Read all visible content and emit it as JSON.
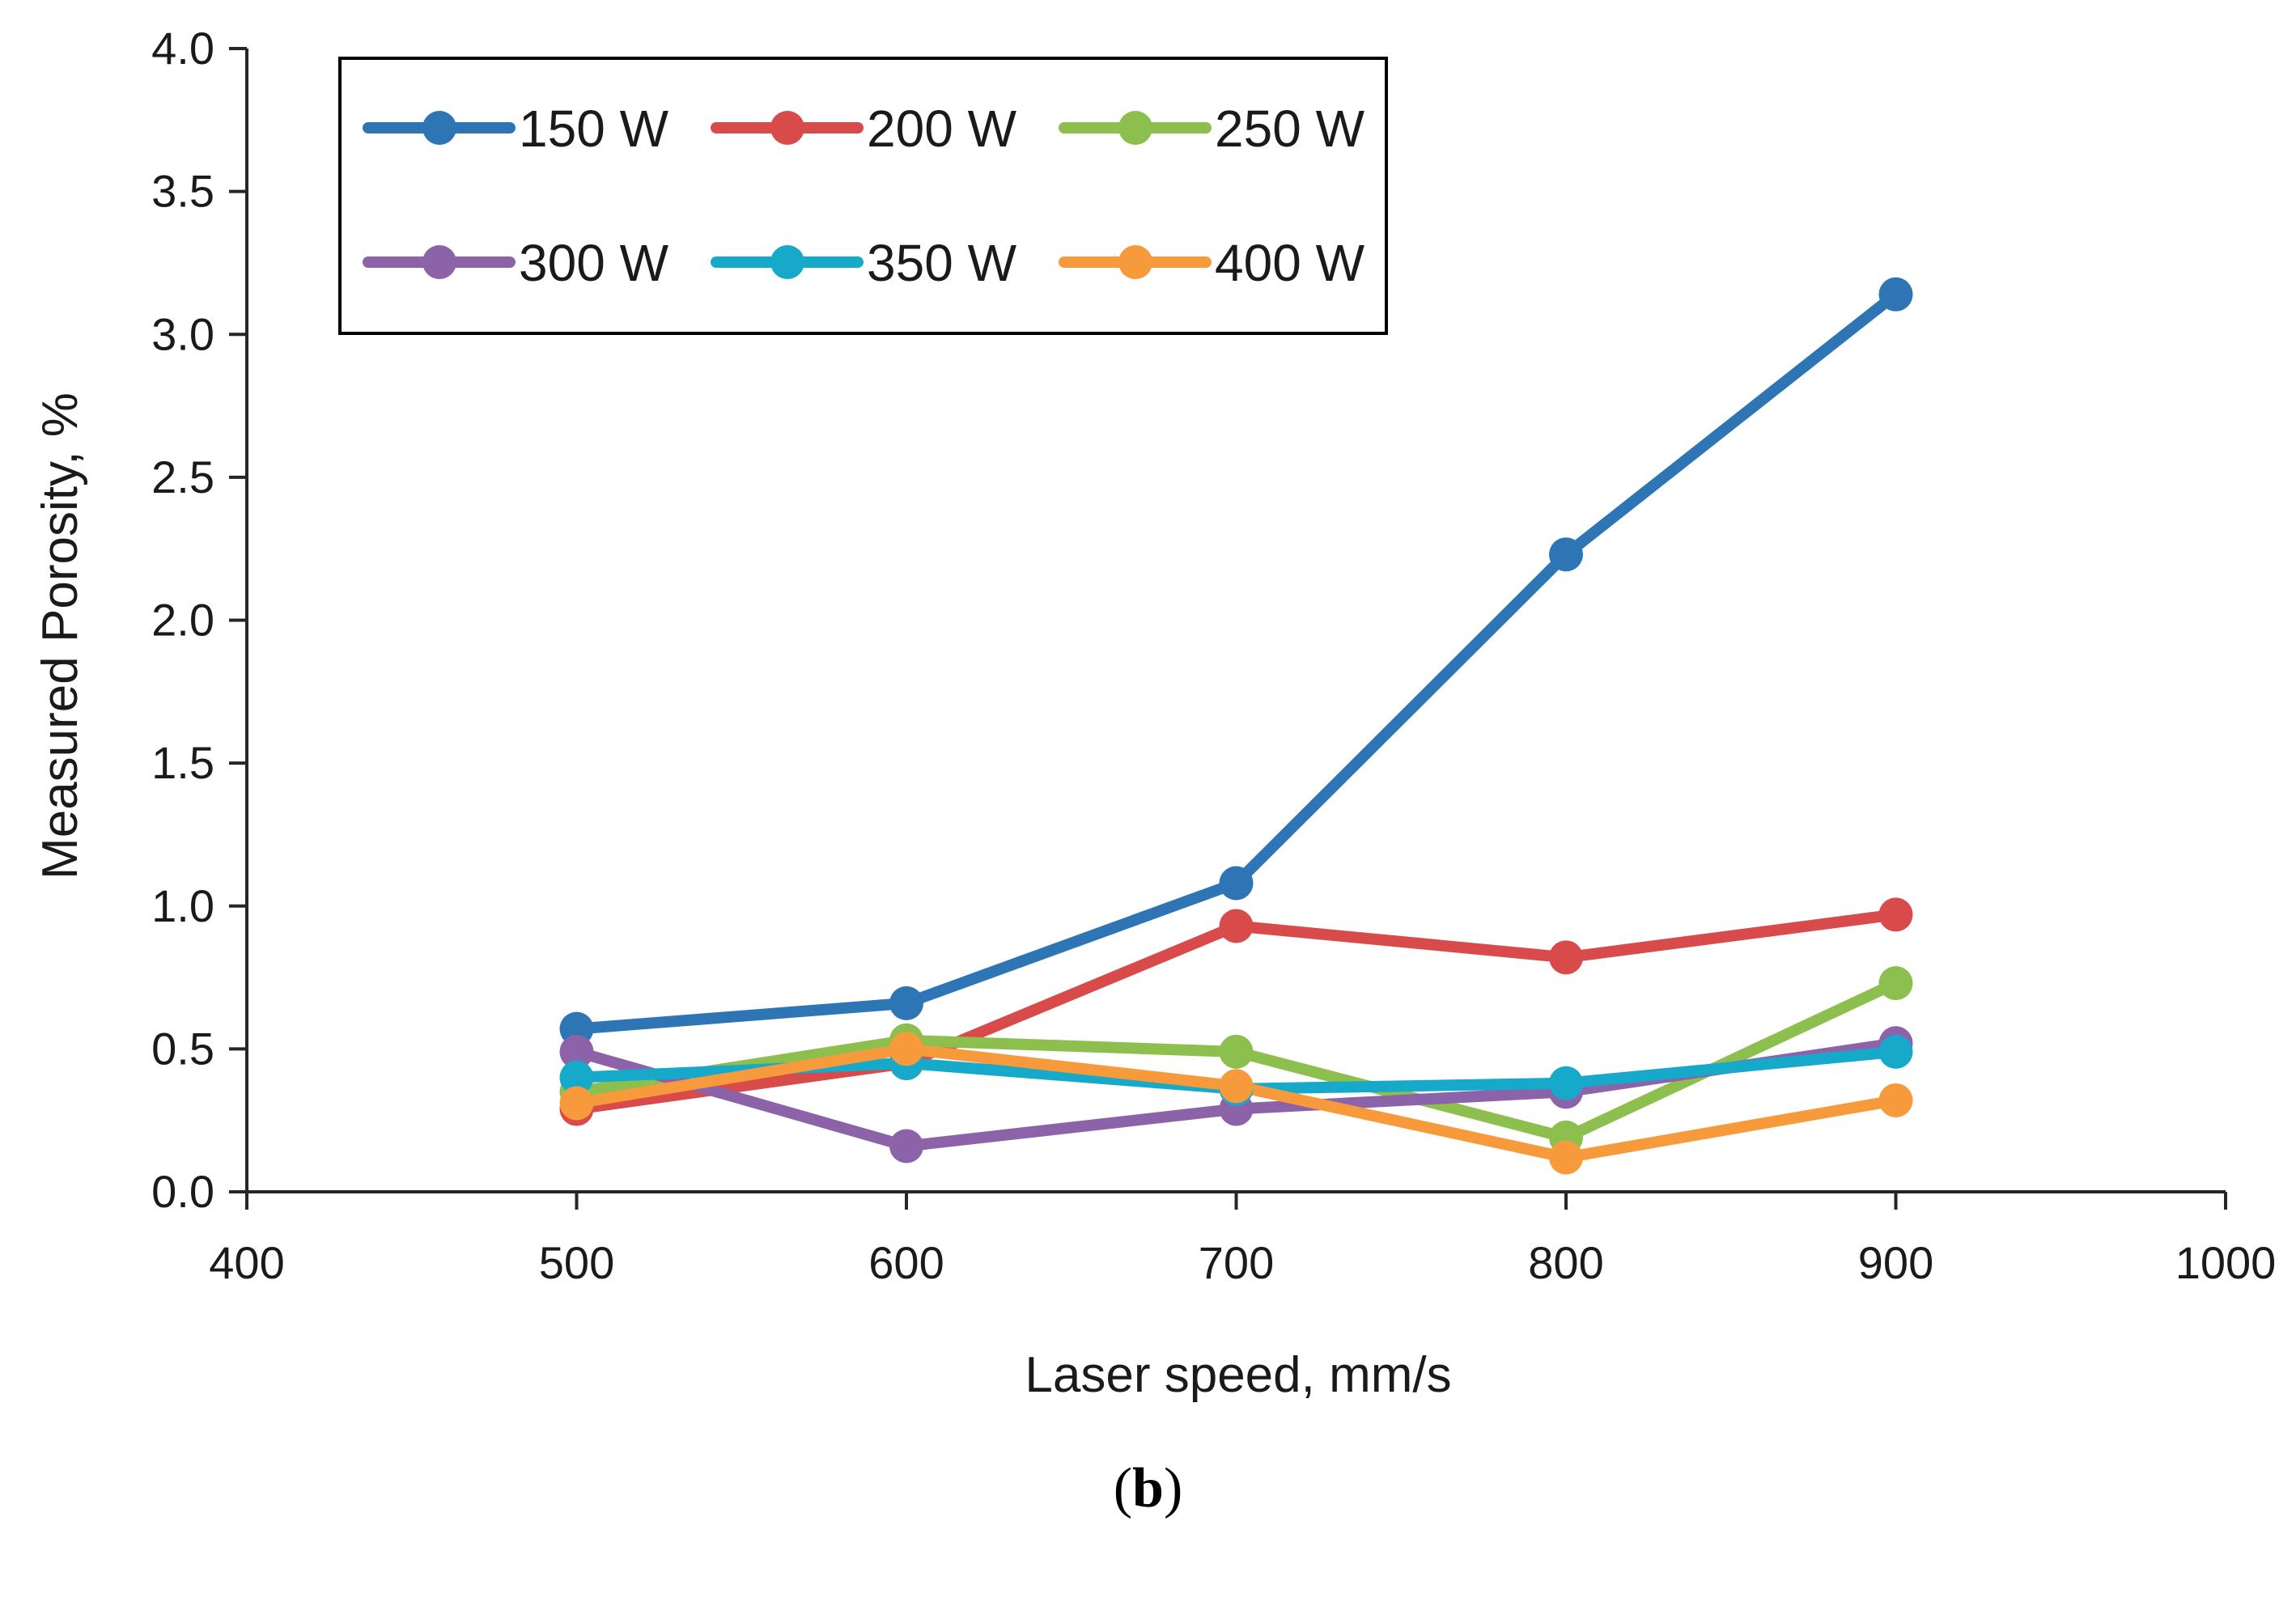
{
  "chart_data": {
    "type": "line",
    "title": "",
    "xlabel": "Laser speed, mm/s",
    "ylabel": "Measured Porosity, %",
    "xlim": [
      400,
      1000
    ],
    "ylim": [
      0.0,
      4.0
    ],
    "x_ticks": [
      "400",
      "500",
      "600",
      "700",
      "800",
      "900",
      "1000"
    ],
    "y_ticks": [
      "0.0",
      "0.5",
      "1.0",
      "1.5",
      "2.0",
      "2.5",
      "3.0",
      "3.5",
      "4.0"
    ],
    "x": [
      500,
      600,
      700,
      800,
      900
    ],
    "series": [
      {
        "name": "150 W",
        "color": "#2E75B6",
        "values": [
          0.57,
          0.66,
          1.08,
          2.23,
          3.14
        ]
      },
      {
        "name": "200 W",
        "color": "#D94A4A",
        "values": [
          0.29,
          0.45,
          0.93,
          0.82,
          0.97
        ]
      },
      {
        "name": "250 W",
        "color": "#8DBF4E",
        "values": [
          0.35,
          0.53,
          0.49,
          0.19,
          0.73
        ]
      },
      {
        "name": "300 W",
        "color": "#8C62A8",
        "values": [
          0.49,
          0.16,
          0.29,
          0.35,
          0.52
        ]
      },
      {
        "name": "350 W",
        "color": "#17A9C9",
        "values": [
          0.4,
          0.45,
          0.36,
          0.38,
          0.49
        ]
      },
      {
        "name": "400 W",
        "color": "#F79A3C",
        "values": [
          0.31,
          0.5,
          0.37,
          0.12,
          0.32
        ]
      }
    ],
    "grid": false,
    "legend_position": "top-left"
  },
  "caption": {
    "open": "(",
    "letter": "b",
    "close": ")"
  }
}
